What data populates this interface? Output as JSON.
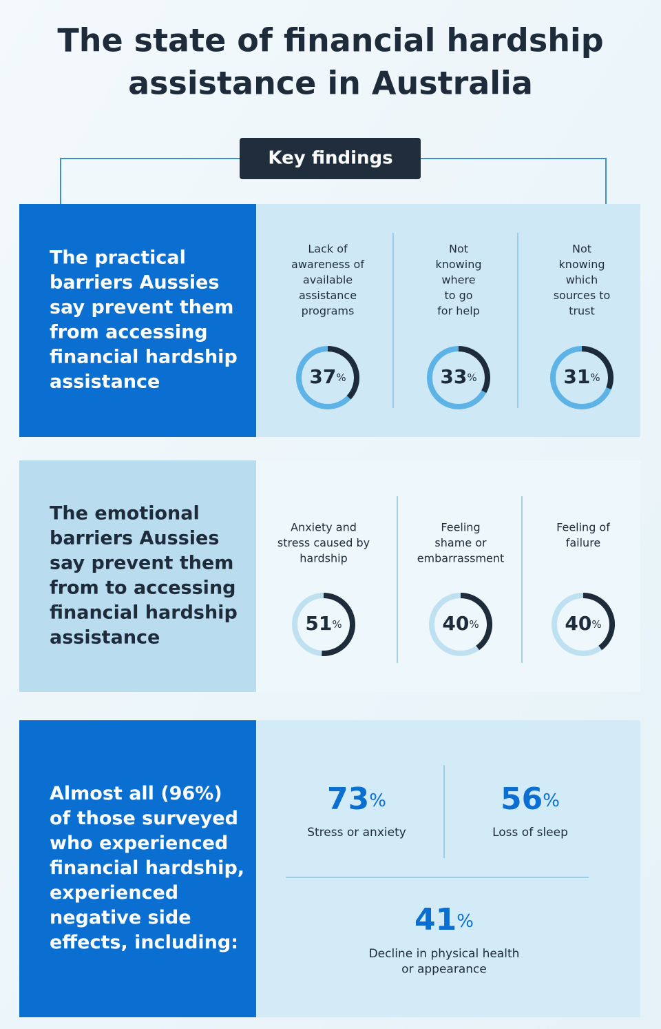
{
  "title": [
    "The state of financial hardship",
    "assistance in Australia"
  ],
  "key_findings": "Key findings",
  "sections": [
    {
      "heading": [
        "The practical",
        "barriers Aussies",
        "say prevent them",
        "from accessing",
        "financial hardship",
        "assistance"
      ],
      "items": [
        {
          "label": [
            "Lack of",
            "awareness of",
            "available",
            "assistance",
            "programs"
          ],
          "value": 37,
          "unit": "%"
        },
        {
          "label": [
            "Not",
            "knowing",
            "where",
            "to go",
            "for help"
          ],
          "value": 33,
          "unit": "%"
        },
        {
          "label": [
            "Not",
            "knowing",
            "which",
            "sources to",
            "trust"
          ],
          "value": 31,
          "unit": "%"
        }
      ]
    },
    {
      "heading": [
        "The emotional",
        "barriers Aussies",
        "say prevent them",
        "from to accessing",
        "financial hardship",
        "assistance"
      ],
      "items": [
        {
          "label": [
            "Anxiety and",
            "stress caused by",
            "hardship"
          ],
          "value": 51,
          "unit": "%"
        },
        {
          "label": [
            "Feeling",
            "shame or",
            "embarrassment"
          ],
          "value": 40,
          "unit": "%"
        },
        {
          "label": [
            "Feeling of",
            "failure"
          ],
          "value": 40,
          "unit": "%"
        }
      ]
    },
    {
      "heading": [
        "Almost all (96%)",
        "of those surveyed",
        "who experienced",
        "financial hardship,",
        "experienced",
        "negative side",
        "effects, including:"
      ],
      "items": [
        {
          "label": [
            "Stress or anxiety"
          ],
          "value": 73,
          "unit": "%"
        },
        {
          "label": [
            "Loss of sleep"
          ],
          "value": 56,
          "unit": "%"
        },
        {
          "label": [
            "Decline in physical health",
            "or appearance"
          ],
          "value": 41,
          "unit": "%"
        }
      ]
    }
  ]
}
